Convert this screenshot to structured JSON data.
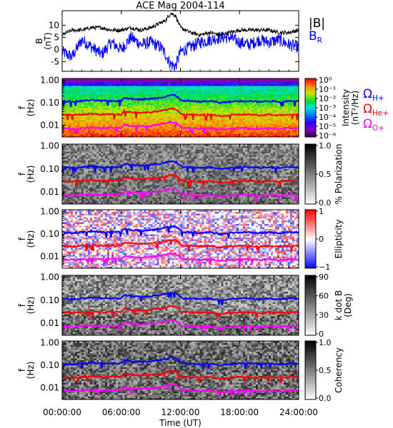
{
  "chart_data": [
    {
      "type": "line",
      "title": "ACE Mag 2004-114",
      "ylabel": [
        "B",
        "(nT)"
      ],
      "ylim": [
        -9,
        16
      ],
      "yticks": [
        10,
        5,
        0,
        -5
      ],
      "x_range_hours": [
        0,
        24
      ],
      "legend": "right",
      "series": [
        {
          "name": "|B|",
          "color": "#000000",
          "x": [
            0,
            1,
            2,
            3,
            4,
            5,
            6,
            7,
            8,
            9,
            10,
            10.5,
            11,
            11.5,
            12,
            13,
            14,
            15,
            16,
            17,
            18,
            19,
            20,
            21,
            22,
            23,
            24
          ],
          "values": [
            6,
            8,
            8,
            9,
            9,
            8,
            8,
            9,
            8,
            9,
            11,
            12,
            15,
            14,
            9,
            7,
            6,
            7,
            6,
            7,
            8,
            8,
            8,
            8,
            7,
            7,
            8
          ]
        },
        {
          "name": "B",
          "sub": "R",
          "color": "#0000ff",
          "x": [
            0,
            1,
            2,
            3,
            4,
            5,
            6,
            7,
            8,
            9,
            10,
            10.5,
            11,
            11.5,
            12,
            13,
            14,
            15,
            16,
            17,
            18,
            19,
            20,
            21,
            22,
            23,
            24
          ],
          "values": [
            -1,
            -3,
            4,
            1,
            -2,
            3,
            0,
            5,
            2,
            3,
            1,
            -2,
            -6,
            -7,
            -1,
            1,
            3,
            4,
            5,
            5,
            3,
            2,
            4,
            3,
            4,
            2,
            1
          ]
        }
      ]
    },
    {
      "type": "heatmap",
      "ylabel": [
        "f",
        "(Hz)"
      ],
      "yscale": "log",
      "ylim": [
        0.003,
        1.2
      ],
      "yticks": [
        "1.00",
        "0.10",
        "0.01"
      ],
      "colorbar": {
        "label": [
          "Intensity",
          "(nT²/Hz)"
        ],
        "ticks": [
          "10⁰",
          "10⁻¹",
          "10⁻²",
          "10⁻³",
          "10⁻⁴",
          "10⁻⁵",
          "10⁻⁶"
        ],
        "scheme": "rainbow"
      },
      "legend_labels": [
        {
          "sym": "Ω",
          "sub": "H+",
          "color": "#0000ff"
        },
        {
          "sym": "Ω",
          "sub": "He+",
          "color": "#ff0000"
        },
        {
          "sym": "Ω",
          "sub": "O+",
          "color": "#ff00ff"
        }
      ]
    },
    {
      "type": "heatmap",
      "ylabel": [
        "f",
        "(Hz)"
      ],
      "yscale": "log",
      "yticks": [
        "1.00",
        "0.10",
        "0.01"
      ],
      "colorbar": {
        "label": [
          "% Polarization"
        ],
        "ticks": [
          "1.0",
          "0.5",
          "0.0"
        ],
        "scheme": "gray"
      }
    },
    {
      "type": "heatmap",
      "ylabel": [
        "f",
        "(Hz)"
      ],
      "yscale": "log",
      "yticks": [
        "1.00",
        "0.10",
        "0.01"
      ],
      "colorbar": {
        "label": [
          "Ellipticity"
        ],
        "ticks": [
          "1",
          "0",
          "−1"
        ],
        "scheme": "bwr"
      }
    },
    {
      "type": "heatmap",
      "ylabel": [
        "f",
        "(Hz)"
      ],
      "yscale": "log",
      "yticks": [
        "1.00",
        "0.10",
        "0.01"
      ],
      "colorbar": {
        "label": [
          "k dot B",
          "(Deg)"
        ],
        "ticks": [
          "90",
          "60",
          "30",
          "0"
        ],
        "scheme": "gray"
      }
    },
    {
      "type": "heatmap",
      "ylabel": [
        "f",
        "(Hz)"
      ],
      "yscale": "log",
      "yticks": [
        "1.00",
        "0.10",
        "0.01"
      ],
      "colorbar": {
        "label": [
          "Coherency"
        ],
        "ticks": [
          "1.0",
          "0.5",
          "0.0"
        ],
        "scheme": "gray"
      }
    }
  ],
  "gyrofrequency_lines": {
    "x_hours": [
      0,
      1,
      2,
      3,
      4,
      5,
      6,
      6.3,
      7,
      8,
      9,
      10,
      10.5,
      11,
      11.5,
      12,
      12.2,
      13,
      14,
      15,
      16,
      17,
      18,
      19,
      20,
      21,
      22,
      23,
      24
    ],
    "H+": [
      0.12,
      0.11,
      0.12,
      0.13,
      0.12,
      0.12,
      0.12,
      0.17,
      0.15,
      0.14,
      0.15,
      0.17,
      0.19,
      0.22,
      0.21,
      0.14,
      0.12,
      0.12,
      0.11,
      0.12,
      0.1,
      0.11,
      0.12,
      0.12,
      0.11,
      0.12,
      0.11,
      0.12,
      0.12
    ],
    "He+": [
      0.03,
      0.028,
      0.03,
      0.032,
      0.03,
      0.031,
      0.03,
      0.042,
      0.038,
      0.036,
      0.038,
      0.043,
      0.048,
      0.055,
      0.052,
      0.035,
      0.03,
      0.03,
      0.028,
      0.03,
      0.025,
      0.028,
      0.03,
      0.03,
      0.027,
      0.03,
      0.028,
      0.03,
      0.03
    ],
    "O+": [
      0.0075,
      0.007,
      0.0075,
      0.008,
      0.0075,
      0.0078,
      0.0075,
      0.0105,
      0.0095,
      0.009,
      0.0095,
      0.011,
      0.012,
      0.014,
      0.013,
      0.0088,
      0.0075,
      0.0075,
      0.007,
      0.0075,
      0.0063,
      0.007,
      0.0075,
      0.0075,
      0.0068,
      0.0075,
      0.007,
      0.0075,
      0.0075
    ]
  },
  "xaxis": {
    "label": "Time (UT)",
    "ticks": [
      "00:00:00",
      "06:00:00",
      "12:00:00",
      "18:00:00",
      "24:00:00"
    ],
    "tick_hours": [
      0,
      6,
      12,
      18,
      24
    ]
  }
}
